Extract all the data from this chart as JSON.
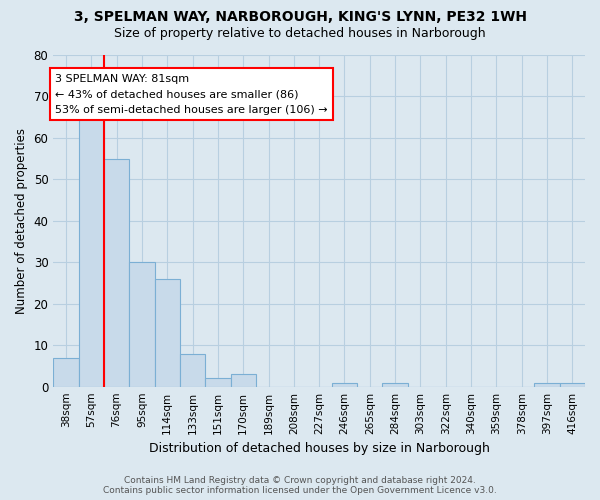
{
  "title1": "3, SPELMAN WAY, NARBOROUGH, KING'S LYNN, PE32 1WH",
  "title2": "Size of property relative to detached houses in Narborough",
  "xlabel": "Distribution of detached houses by size in Narborough",
  "ylabel": "Number of detached properties",
  "footer1": "Contains HM Land Registry data © Crown copyright and database right 2024.",
  "footer2": "Contains public sector information licensed under the Open Government Licence v3.0.",
  "categories": [
    "38sqm",
    "57sqm",
    "76sqm",
    "95sqm",
    "114sqm",
    "133sqm",
    "151sqm",
    "170sqm",
    "189sqm",
    "208sqm",
    "227sqm",
    "246sqm",
    "265sqm",
    "284sqm",
    "303sqm",
    "322sqm",
    "340sqm",
    "359sqm",
    "378sqm",
    "397sqm",
    "416sqm"
  ],
  "values": [
    7,
    65,
    55,
    30,
    26,
    8,
    2,
    3,
    0,
    0,
    0,
    1,
    0,
    1,
    0,
    0,
    0,
    0,
    0,
    1,
    1
  ],
  "bar_color": "#c8daea",
  "bar_edge_color": "#7bafd4",
  "red_line_index": 2,
  "annotation_title": "3 SPELMAN WAY: 81sqm",
  "annotation_line1": "← 43% of detached houses are smaller (86)",
  "annotation_line2": "53% of semi-detached houses are larger (106) →",
  "ylim": [
    0,
    80
  ],
  "yticks": [
    0,
    10,
    20,
    30,
    40,
    50,
    60,
    70,
    80
  ],
  "fig_bg": "#dce8f0",
  "plot_bg": "#dce8f0",
  "grid_color": "#b8cfe0",
  "title1_fontsize": 10,
  "title2_fontsize": 9
}
